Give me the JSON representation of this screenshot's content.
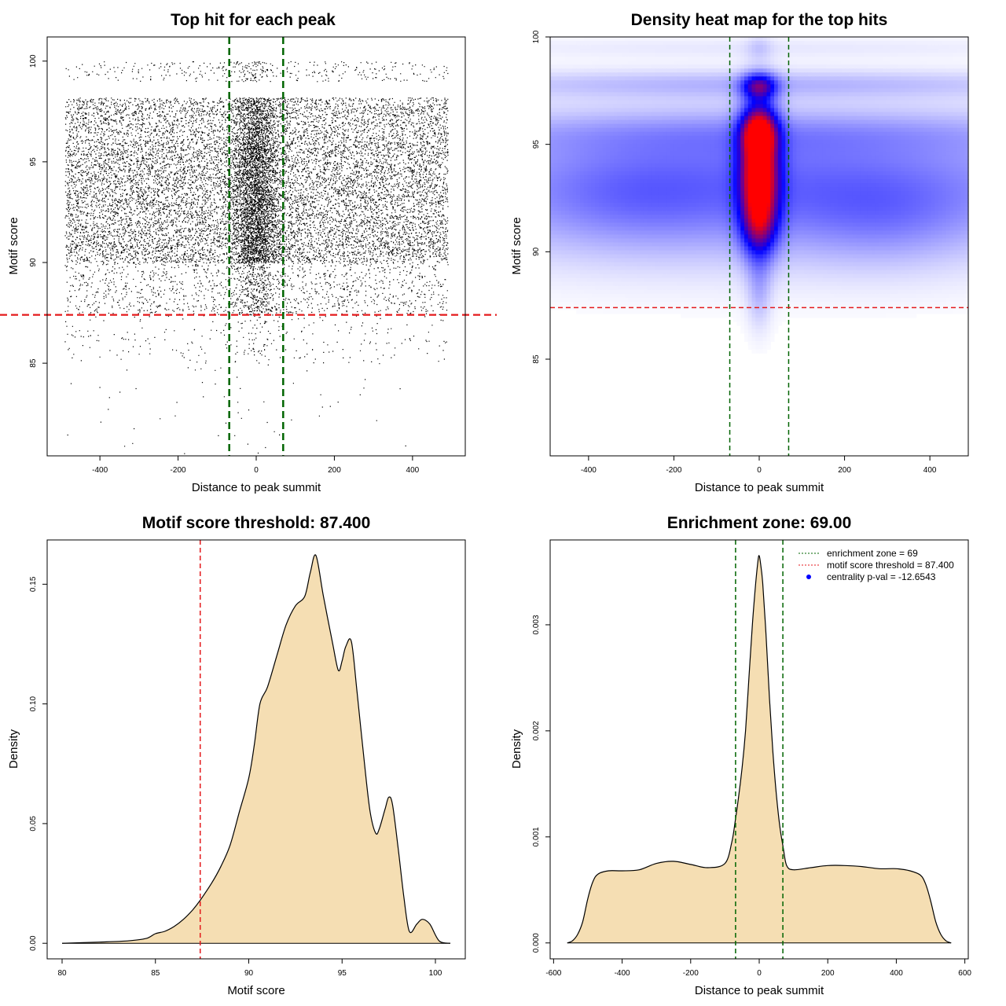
{
  "chart_data": [
    {
      "panel": "scatter",
      "type": "scatter",
      "title": "Top hit for each peak",
      "xlabel": "Distance to peak summit",
      "ylabel": "Motif score",
      "xlim": [
        -535,
        535
      ],
      "ylim": [
        80.4,
        101.2
      ],
      "xticks": [
        -400,
        -200,
        0,
        200,
        400
      ],
      "yticks": [
        85,
        90,
        95,
        100
      ],
      "x_range_points": [
        -490,
        490
      ],
      "approx_point_count": 17000,
      "score_bands": [
        {
          "y_min": 80.5,
          "y_max": 85,
          "weight": 0.3
        },
        {
          "y_min": 85,
          "y_max": 87.4,
          "weight": 1.5
        },
        {
          "y_min": 87.4,
          "y_max": 90,
          "weight": 8
        },
        {
          "y_min": 90,
          "y_max": 96,
          "weight": 60
        },
        {
          "y_min": 96,
          "y_max": 98.2,
          "weight": 18
        },
        {
          "y_min": 99,
          "y_max": 100,
          "weight": 2
        }
      ],
      "central_enrichment": {
        "center": 0,
        "sd": 30,
        "fraction": 0.22
      },
      "vlines": [
        -69,
        69
      ],
      "vline_color": "#006400",
      "hline": 87.4,
      "hline_color": "#e41a1c"
    },
    {
      "panel": "heatmap",
      "type": "heatmap",
      "title": "Density heat map for the top hits",
      "xlabel": "Distance to peak summit",
      "ylabel": "Motif score",
      "xlim": [
        -490,
        490
      ],
      "ylim": [
        80.5,
        100
      ],
      "xticks": [
        -400,
        -200,
        0,
        200,
        400
      ],
      "yticks": [
        85,
        90,
        95,
        100
      ],
      "color_scale": [
        "#ffffff",
        "#0000ff",
        "#ff0000"
      ],
      "background_blobs": [
        {
          "x": 0,
          "y": 93,
          "sx": 600,
          "sy": 2.3,
          "w": 0.3
        },
        {
          "x": 0,
          "y": 97.8,
          "sx": 600,
          "sy": 0.45,
          "w": 0.12
        },
        {
          "x": 0,
          "y": 95.5,
          "sx": 600,
          "sy": 0.7,
          "w": 0.1
        },
        {
          "x": 300,
          "y": 91.5,
          "sx": 140,
          "sy": 1.6,
          "w": 0.08
        },
        {
          "x": -300,
          "y": 92.5,
          "sx": 140,
          "sy": 1.6,
          "w": 0.06
        },
        {
          "x": 0,
          "y": 99.5,
          "sx": 600,
          "sy": 0.35,
          "w": 0.04
        }
      ],
      "central_blobs": [
        {
          "x": 0,
          "y": 93.8,
          "sx": 30,
          "sy": 2.0,
          "w": 1.0
        },
        {
          "x": 0,
          "y": 95.6,
          "sx": 28,
          "sy": 0.7,
          "w": 0.45
        },
        {
          "x": 0,
          "y": 97.7,
          "sx": 28,
          "sy": 0.4,
          "w": 0.45
        },
        {
          "x": 0,
          "y": 91.2,
          "sx": 28,
          "sy": 1.0,
          "w": 0.3
        },
        {
          "x": 0,
          "y": 88.2,
          "sx": 20,
          "sy": 1.3,
          "w": 0.12
        },
        {
          "x": 0,
          "y": 99.5,
          "sx": 20,
          "sy": 0.4,
          "w": 0.06
        }
      ],
      "vlines": [
        -69,
        69
      ],
      "vline_color": "#006400",
      "hline": 87.4,
      "hline_color": "#e41a1c"
    },
    {
      "panel": "score_density",
      "type": "area",
      "title": "Motif score threshold: 87.400",
      "xlabel": "Motif score",
      "ylabel": "Density",
      "xlim": [
        79.2,
        101.6
      ],
      "ylim": [
        -0.0065,
        0.1685
      ],
      "xticks": [
        80,
        85,
        90,
        95,
        100
      ],
      "yticks": [
        0.0,
        0.05,
        0.1,
        0.15
      ],
      "ytick_labels": [
        "0.00",
        "0.05",
        "0.10",
        "0.15"
      ],
      "x": [
        80,
        82,
        83.5,
        84.5,
        85,
        85.5,
        86,
        86.5,
        87,
        87.4,
        88,
        88.5,
        89,
        89.5,
        90,
        90.3,
        90.6,
        91,
        91.5,
        92,
        92.5,
        93,
        93.3,
        93.6,
        94,
        94.5,
        94.8,
        95,
        95.2,
        95.5,
        95.8,
        96.2,
        96.5,
        96.8,
        97,
        97.3,
        97.5,
        97.7,
        98,
        98.3,
        98.6,
        99,
        99.3,
        99.7,
        100.2,
        100.8
      ],
      "y": [
        0,
        0.0005,
        0.001,
        0.002,
        0.004,
        0.005,
        0.007,
        0.01,
        0.014,
        0.018,
        0.025,
        0.032,
        0.041,
        0.055,
        0.069,
        0.083,
        0.1,
        0.107,
        0.12,
        0.133,
        0.141,
        0.145,
        0.155,
        0.162,
        0.145,
        0.125,
        0.114,
        0.118,
        0.124,
        0.126,
        0.105,
        0.075,
        0.055,
        0.046,
        0.048,
        0.056,
        0.061,
        0.058,
        0.04,
        0.02,
        0.005,
        0.008,
        0.01,
        0.008,
        0.001,
        0
      ],
      "fill_color": "#f5deb3",
      "vline": 87.4,
      "vline_color": "#e41a1c"
    },
    {
      "panel": "distance_density",
      "type": "area",
      "title": "Enrichment zone: 69.00",
      "xlabel": "Distance to peak summit",
      "ylabel": "Density",
      "xlim": [
        -610,
        610
      ],
      "ylim": [
        -0.00015,
        0.0038
      ],
      "xticks": [
        -600,
        -400,
        -200,
        0,
        200,
        400,
        600
      ],
      "yticks": [
        0.0,
        0.001,
        0.002,
        0.003
      ],
      "ytick_labels": [
        "0.000",
        "0.001",
        "0.002",
        "0.003"
      ],
      "x": [
        -560,
        -545,
        -530,
        -515,
        -500,
        -485,
        -470,
        -440,
        -400,
        -350,
        -300,
        -250,
        -200,
        -150,
        -100,
        -80,
        -70,
        -60,
        -50,
        -40,
        -30,
        -20,
        -10,
        -3,
        0,
        3,
        10,
        20,
        30,
        40,
        50,
        60,
        70,
        80,
        100,
        150,
        200,
        250,
        300,
        350,
        400,
        440,
        470,
        485,
        500,
        515,
        530,
        545,
        560
      ],
      "y": [
        0,
        2e-05,
        8e-05,
        0.0002,
        0.00042,
        0.00058,
        0.00065,
        0.00068,
        0.00068,
        0.00069,
        0.00075,
        0.00077,
        0.00074,
        0.00071,
        0.00075,
        0.00095,
        0.00115,
        0.00138,
        0.00165,
        0.002,
        0.0025,
        0.003,
        0.0034,
        0.00362,
        0.00365,
        0.0036,
        0.0034,
        0.0029,
        0.0023,
        0.0018,
        0.0014,
        0.0011,
        0.0009,
        0.00073,
        0.00069,
        0.00071,
        0.00073,
        0.00073,
        0.00072,
        0.0007,
        0.0007,
        0.00068,
        0.00064,
        0.00056,
        0.0004,
        0.0002,
        8e-05,
        2e-05,
        0
      ],
      "fill_color": "#f5deb3",
      "vlines": [
        -69,
        69
      ],
      "vline_color": "#006400",
      "legend": {
        "position": "top-right",
        "items": [
          {
            "label": "enrichment zone = 69",
            "color": "#006400",
            "style": "dotted-line"
          },
          {
            "label": "motif score threshold = 87.400",
            "color": "#e41a1c",
            "style": "dotted-line"
          },
          {
            "label": "centrality p-val = -12.6543",
            "color": "#0000ff",
            "style": "dot"
          }
        ]
      }
    }
  ]
}
